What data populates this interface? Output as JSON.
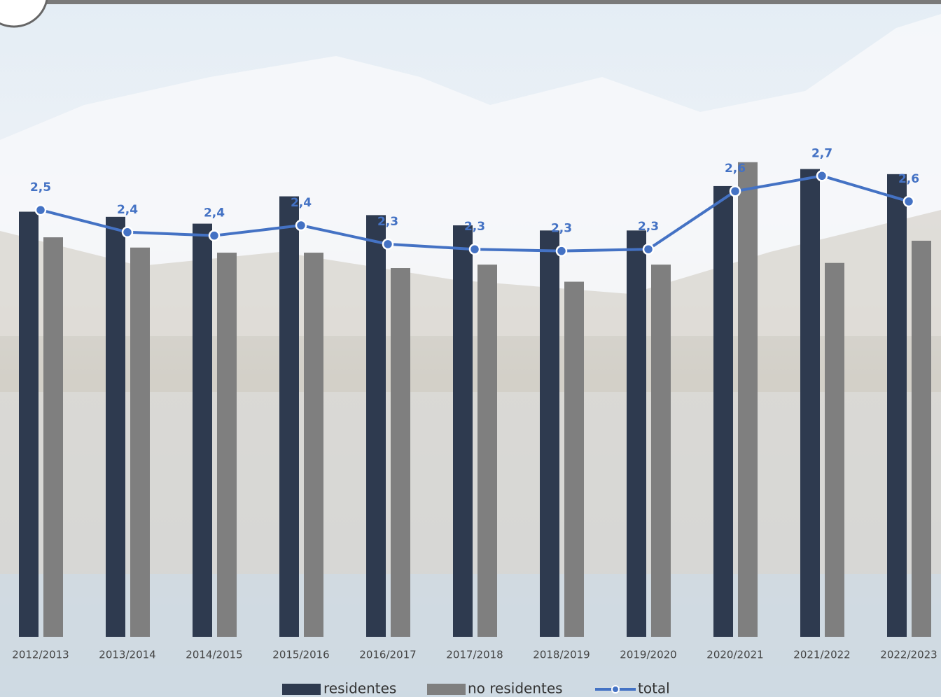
{
  "chart_data": {
    "type": "bar-line",
    "categories": [
      "2012/2013",
      "2013/2014",
      "2014/2015",
      "2015/2016",
      "2016/2017",
      "2017/2018",
      "2018/2019",
      "2019/2020",
      "2020/2021",
      "2021/2022",
      "2022/2023"
    ],
    "series": [
      {
        "name": "residentes",
        "type": "bar",
        "color": "#2e3a4f",
        "values": [
          2.49,
          2.46,
          2.42,
          2.58,
          2.47,
          2.41,
          2.38,
          2.38,
          2.64,
          2.74,
          2.71
        ]
      },
      {
        "name": "no residentes",
        "type": "bar",
        "color": "#7f7f7f",
        "values": [
          2.34,
          2.28,
          2.25,
          2.25,
          2.16,
          2.18,
          2.08,
          2.18,
          2.78,
          2.19,
          2.32
        ]
      },
      {
        "name": "total",
        "type": "line",
        "color": "#4472c4",
        "values": [
          2.5,
          2.37,
          2.35,
          2.41,
          2.3,
          2.27,
          2.26,
          2.27,
          2.61,
          2.7,
          2.55
        ],
        "value_labels": [
          "2,5",
          "2,4",
          "2,4",
          "2,4",
          "2,3",
          "2,3",
          "2,3",
          "2,3",
          "2,6",
          "2,7",
          "2,6"
        ]
      }
    ],
    "ylim": [
      0,
      3.73
    ]
  }
}
